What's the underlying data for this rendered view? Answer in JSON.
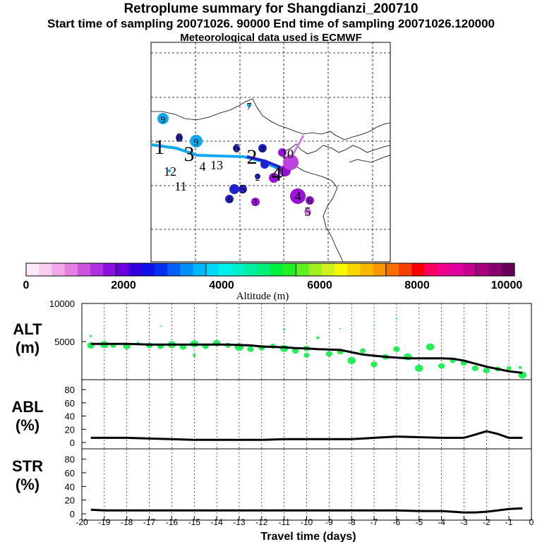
{
  "header": {
    "title": "Retroplume summary for Shangdianzi_200710",
    "sampling_line": "Start time of sampling 20071026. 90000     End time of sampling 20071026.120000",
    "met_line": "Meteorological data used is ECMWF"
  },
  "map": {
    "trajectory_labels": [
      {
        "text": "9",
        "size": "s"
      },
      {
        "text": "7",
        "size": "s"
      },
      {
        "text": "1",
        "size": "l"
      },
      {
        "text": "8",
        "size": "m"
      },
      {
        "text": "9",
        "size": "s"
      },
      {
        "text": "3",
        "size": "l"
      },
      {
        "text": "4",
        "size": "m"
      },
      {
        "text": "13",
        "size": "m"
      },
      {
        "text": "12",
        "size": "m"
      },
      {
        "text": "11",
        "size": "m"
      },
      {
        "text": "2",
        "size": "l"
      },
      {
        "text": "6",
        "size": "m"
      },
      {
        "text": "8",
        "size": "s"
      },
      {
        "text": "10",
        "size": "m"
      },
      {
        "text": "4",
        "size": "l"
      },
      {
        "text": "2",
        "size": "s"
      },
      {
        "text": "1",
        "size": "m"
      },
      {
        "text": "5",
        "size": "m"
      },
      {
        "text": "4",
        "size": "m"
      },
      {
        "text": "5",
        "size": "m"
      },
      {
        "text": "3",
        "size": "s"
      },
      {
        "text": "6",
        "size": "s"
      },
      {
        "text": "6",
        "size": "s"
      }
    ]
  },
  "colorbar": {
    "tick_labels": [
      "0",
      "2000",
      "4000",
      "6000",
      "8000",
      "10000"
    ],
    "label": "Altitude (m)",
    "colors": [
      "#fde8f8",
      "#f8cdf1",
      "#f0a8ea",
      "#e57fe2",
      "#cc55dd",
      "#b030dd",
      "#8c10e0",
      "#6a00e0",
      "#3300dd",
      "#1010e8",
      "#0030f0",
      "#0060f8",
      "#0090f8",
      "#00b8f8",
      "#00d8f8",
      "#00f0f0",
      "#00f0c8",
      "#00f0a0",
      "#00f078",
      "#00f040",
      "#20f020",
      "#60f020",
      "#a0f020",
      "#d0f020",
      "#f8f800",
      "#f8d800",
      "#f8b800",
      "#f89800",
      "#f87000",
      "#f84000",
      "#f80000",
      "#f80060",
      "#f00090",
      "#e000a0",
      "#c80090",
      "#a80080",
      "#880070",
      "#680058"
    ]
  },
  "chart_data": [
    {
      "type": "line",
      "name": "ALT",
      "ylabel": "ALT\n(m)",
      "ylim": [
        0,
        10000
      ],
      "y_ticks": [
        5000,
        10000
      ],
      "x": [
        -19.6,
        -19,
        -18.5,
        -18,
        -17.5,
        -17,
        -16.5,
        -16,
        -15.5,
        -15,
        -14.5,
        -14,
        -13.5,
        -13,
        -12.5,
        -12,
        -11.5,
        -11,
        -10.5,
        -10,
        -9.5,
        -9,
        -8.5,
        -8,
        -7.5,
        -7,
        -6.5,
        -6,
        -5.5,
        -5,
        -4.5,
        -4,
        -3.5,
        -3,
        -2.5,
        -2,
        -1.5,
        -1,
        -0.4
      ],
      "median": [
        4700,
        4700,
        4700,
        4700,
        4650,
        4600,
        4600,
        4600,
        4600,
        4600,
        4600,
        4600,
        4600,
        4550,
        4500,
        4350,
        4300,
        4250,
        4150,
        4100,
        4000,
        3950,
        3900,
        3600,
        3300,
        3150,
        3000,
        2900,
        2800,
        2800,
        2800,
        2800,
        2750,
        2500,
        2100,
        1700,
        1400,
        1100,
        900
      ],
      "spread": [
        {
          "x": -19.6,
          "y": 4500,
          "r": 4.5
        },
        {
          "x": -19.6,
          "y": 5700,
          "r": 1.5
        },
        {
          "x": -19,
          "y": 4600,
          "r": 5
        },
        {
          "x": -18.6,
          "y": 4500,
          "r": 3.5
        },
        {
          "x": -18,
          "y": 4400,
          "r": 4.5
        },
        {
          "x": -17.5,
          "y": 4800,
          "r": 2
        },
        {
          "x": -17,
          "y": 4500,
          "r": 4
        },
        {
          "x": -16.5,
          "y": 7000,
          "r": 1
        },
        {
          "x": -16.5,
          "y": 4400,
          "r": 4
        },
        {
          "x": -16,
          "y": 4600,
          "r": 5
        },
        {
          "x": -15.5,
          "y": 4300,
          "r": 4
        },
        {
          "x": -15,
          "y": 4700,
          "r": 5
        },
        {
          "x": -15,
          "y": 3200,
          "r": 2
        },
        {
          "x": -14.5,
          "y": 4400,
          "r": 4
        },
        {
          "x": -14,
          "y": 4800,
          "r": 4.5
        },
        {
          "x": -13.5,
          "y": 4500,
          "r": 3.5
        },
        {
          "x": -13,
          "y": 4300,
          "r": 5.5
        },
        {
          "x": -12.5,
          "y": 4000,
          "r": 4
        },
        {
          "x": -12,
          "y": 4200,
          "r": 4
        },
        {
          "x": -11.5,
          "y": 4400,
          "r": 3.5
        },
        {
          "x": -11,
          "y": 6600,
          "r": 1.5
        },
        {
          "x": -11,
          "y": 4100,
          "r": 5
        },
        {
          "x": -10.5,
          "y": 3800,
          "r": 4
        },
        {
          "x": -10,
          "y": 4100,
          "r": 4
        },
        {
          "x": -10,
          "y": 3200,
          "r": 3.5
        },
        {
          "x": -9.5,
          "y": 5500,
          "r": 2
        },
        {
          "x": -9,
          "y": 3400,
          "r": 4
        },
        {
          "x": -8.5,
          "y": 6700,
          "r": 1
        },
        {
          "x": -8.5,
          "y": 3700,
          "r": 4
        },
        {
          "x": -8,
          "y": 2500,
          "r": 5
        },
        {
          "x": -7.5,
          "y": 3800,
          "r": 3.5
        },
        {
          "x": -7,
          "y": 7100,
          "r": 1
        },
        {
          "x": -7,
          "y": 2000,
          "r": 4
        },
        {
          "x": -6.5,
          "y": 3000,
          "r": 4
        },
        {
          "x": -6,
          "y": 8000,
          "r": 1
        },
        {
          "x": -6,
          "y": 4000,
          "r": 4
        },
        {
          "x": -5.5,
          "y": 3000,
          "r": 5
        },
        {
          "x": -5,
          "y": 1500,
          "r": 5
        },
        {
          "x": -4.5,
          "y": 4300,
          "r": 5
        },
        {
          "x": -4,
          "y": 1800,
          "r": 4
        },
        {
          "x": -3.5,
          "y": 2500,
          "r": 3.5
        },
        {
          "x": -3,
          "y": 2200,
          "r": 4
        },
        {
          "x": -2.5,
          "y": 1500,
          "r": 4
        },
        {
          "x": -2,
          "y": 1200,
          "r": 4
        },
        {
          "x": -1.5,
          "y": 1400,
          "r": 3.5
        },
        {
          "x": -1,
          "y": 1500,
          "r": 3
        },
        {
          "x": -0.5,
          "y": 1600,
          "r": 2
        },
        {
          "x": -0.4,
          "y": 600,
          "r": 5
        }
      ]
    },
    {
      "type": "line",
      "name": "ABL",
      "ylabel": "ABL\n(%)",
      "ylim": [
        0,
        95
      ],
      "y_ticks": [
        0,
        20,
        40,
        60,
        80
      ],
      "x": [
        -19.6,
        -19,
        -18,
        -17,
        -16,
        -15,
        -14,
        -13,
        -12,
        -11,
        -10,
        -9,
        -8,
        -7,
        -6,
        -5,
        -4,
        -3,
        -2.5,
        -2,
        -1.5,
        -1,
        -0.4
      ],
      "values": [
        7,
        7,
        7,
        6,
        5,
        4,
        4,
        4,
        4,
        5,
        5,
        5,
        5,
        7,
        9,
        8,
        7,
        7,
        12,
        17,
        13,
        7,
        7
      ]
    },
    {
      "type": "line",
      "name": "STR",
      "ylabel": "STR\n(%)",
      "ylim": [
        0,
        95
      ],
      "y_ticks": [
        0,
        20,
        40,
        60,
        80
      ],
      "x": [
        -19.6,
        -19,
        -18,
        -17,
        -16,
        -15,
        -14,
        -13,
        -12,
        -11,
        -10,
        -9,
        -8,
        -7,
        -6,
        -5,
        -4,
        -3.5,
        -3,
        -2.5,
        -2,
        -1.5,
        -1,
        -0.4
      ],
      "values": [
        6,
        5,
        5,
        5,
        5,
        5,
        5,
        5,
        5,
        5,
        5,
        5,
        5,
        5,
        5,
        4,
        4,
        3,
        2,
        2,
        3,
        5,
        7,
        8
      ],
      "xlim": [
        -20,
        0
      ],
      "x_ticks": [
        "-20",
        "-19",
        "-18",
        "-17",
        "-16",
        "-15",
        "-14",
        "-13",
        "-12",
        "-11",
        "-10",
        "-9",
        "-8",
        "-7",
        "-6",
        "-5",
        "-4",
        "-3",
        "-2",
        "-1",
        "0"
      ],
      "xlabel": "Travel time (days)"
    }
  ]
}
